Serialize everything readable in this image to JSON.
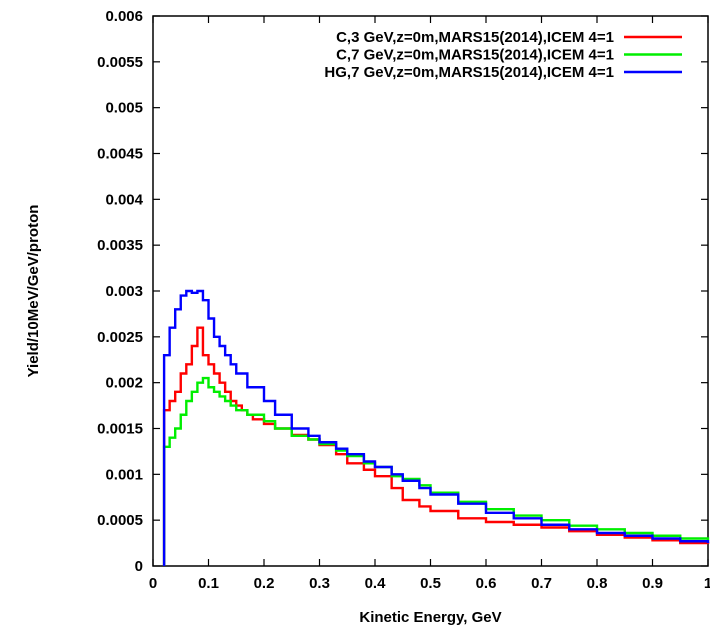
{
  "chart_data": {
    "type": "line",
    "xlabel": "Kinetic Energy, GeV",
    "ylabel": "Yield/10MeV/GeV/proton",
    "xlim": [
      0,
      1
    ],
    "ylim": [
      0,
      0.006
    ],
    "x_ticks": [
      "0",
      "0.1",
      "0.2",
      "0.3",
      "0.4",
      "0.5",
      "0.6",
      "0.7",
      "0.8",
      "0.9",
      "1"
    ],
    "y_ticks": [
      "0",
      "0.0005",
      "0.001",
      "0.0015",
      "0.002",
      "0.0025",
      "0.003",
      "0.0035",
      "0.004",
      "0.0045",
      "0.005",
      "0.0055",
      "0.006"
    ],
    "step": "histogram",
    "grid": false,
    "legend_position": "top-right",
    "series": [
      {
        "name": "C,3 GeV,z=0m,MARS15(2014),ICEM 4=1",
        "color": "#ff0000",
        "points": [
          [
            0.02,
            0.0017
          ],
          [
            0.03,
            0.0018
          ],
          [
            0.04,
            0.0019
          ],
          [
            0.05,
            0.0021
          ],
          [
            0.06,
            0.0022
          ],
          [
            0.07,
            0.0024
          ],
          [
            0.08,
            0.0026
          ],
          [
            0.09,
            0.0023
          ],
          [
            0.1,
            0.0022
          ],
          [
            0.11,
            0.0021
          ],
          [
            0.12,
            0.002
          ],
          [
            0.13,
            0.0019
          ],
          [
            0.14,
            0.0018
          ],
          [
            0.15,
            0.00175
          ],
          [
            0.16,
            0.0017
          ],
          [
            0.17,
            0.00165
          ],
          [
            0.18,
            0.0016
          ],
          [
            0.2,
            0.00155
          ],
          [
            0.22,
            0.0015
          ],
          [
            0.25,
            0.00143
          ],
          [
            0.28,
            0.00138
          ],
          [
            0.3,
            0.00132
          ],
          [
            0.33,
            0.00122
          ],
          [
            0.35,
            0.00112
          ],
          [
            0.38,
            0.00105
          ],
          [
            0.4,
            0.00098
          ],
          [
            0.43,
            0.00085
          ],
          [
            0.45,
            0.00072
          ],
          [
            0.48,
            0.00065
          ],
          [
            0.5,
            0.0006
          ],
          [
            0.55,
            0.00052
          ],
          [
            0.6,
            0.00048
          ],
          [
            0.65,
            0.00045
          ],
          [
            0.7,
            0.00042
          ],
          [
            0.75,
            0.00038
          ],
          [
            0.8,
            0.00034
          ],
          [
            0.85,
            0.00031
          ],
          [
            0.9,
            0.00028
          ],
          [
            0.95,
            0.00025
          ],
          [
            1.0,
            0.00024
          ]
        ]
      },
      {
        "name": "C,7 GeV,z=0m,MARS15(2014),ICEM 4=1",
        "color": "#00ee00",
        "points": [
          [
            0.02,
            0.0013
          ],
          [
            0.03,
            0.0014
          ],
          [
            0.04,
            0.0015
          ],
          [
            0.05,
            0.00165
          ],
          [
            0.06,
            0.0018
          ],
          [
            0.07,
            0.0019
          ],
          [
            0.08,
            0.002
          ],
          [
            0.09,
            0.00205
          ],
          [
            0.1,
            0.00195
          ],
          [
            0.11,
            0.0019
          ],
          [
            0.12,
            0.00185
          ],
          [
            0.13,
            0.0018
          ],
          [
            0.14,
            0.00175
          ],
          [
            0.15,
            0.0017
          ],
          [
            0.17,
            0.00165
          ],
          [
            0.2,
            0.00158
          ],
          [
            0.22,
            0.0015
          ],
          [
            0.25,
            0.00142
          ],
          [
            0.28,
            0.00138
          ],
          [
            0.3,
            0.00133
          ],
          [
            0.33,
            0.00126
          ],
          [
            0.35,
            0.0012
          ],
          [
            0.38,
            0.00112
          ],
          [
            0.4,
            0.00108
          ],
          [
            0.43,
            0.00098
          ],
          [
            0.45,
            0.00095
          ],
          [
            0.48,
            0.00088
          ],
          [
            0.5,
            0.0008
          ],
          [
            0.55,
            0.0007
          ],
          [
            0.6,
            0.00062
          ],
          [
            0.65,
            0.00055
          ],
          [
            0.7,
            0.0005
          ],
          [
            0.75,
            0.00044
          ],
          [
            0.8,
            0.0004
          ],
          [
            0.85,
            0.00036
          ],
          [
            0.9,
            0.00033
          ],
          [
            0.95,
            0.0003
          ],
          [
            1.0,
            0.00028
          ]
        ]
      },
      {
        "name": "HG,7 GeV,z=0m,MARS15(2014),ICEM 4=1",
        "color": "#0000ff",
        "points": [
          [
            0.02,
            0.0023
          ],
          [
            0.03,
            0.0026
          ],
          [
            0.04,
            0.0028
          ],
          [
            0.05,
            0.00295
          ],
          [
            0.06,
            0.003
          ],
          [
            0.07,
            0.00298
          ],
          [
            0.08,
            0.003
          ],
          [
            0.09,
            0.0029
          ],
          [
            0.1,
            0.0027
          ],
          [
            0.11,
            0.0025
          ],
          [
            0.12,
            0.0024
          ],
          [
            0.13,
            0.0023
          ],
          [
            0.14,
            0.0022
          ],
          [
            0.15,
            0.0021
          ],
          [
            0.17,
            0.00195
          ],
          [
            0.2,
            0.0018
          ],
          [
            0.22,
            0.00165
          ],
          [
            0.25,
            0.0015
          ],
          [
            0.28,
            0.00142
          ],
          [
            0.3,
            0.00135
          ],
          [
            0.33,
            0.00128
          ],
          [
            0.35,
            0.00122
          ],
          [
            0.38,
            0.00114
          ],
          [
            0.4,
            0.00108
          ],
          [
            0.43,
            0.001
          ],
          [
            0.45,
            0.00093
          ],
          [
            0.48,
            0.00085
          ],
          [
            0.5,
            0.00078
          ],
          [
            0.55,
            0.00068
          ],
          [
            0.6,
            0.00058
          ],
          [
            0.65,
            0.00052
          ],
          [
            0.7,
            0.00045
          ],
          [
            0.75,
            0.0004
          ],
          [
            0.8,
            0.00036
          ],
          [
            0.85,
            0.00033
          ],
          [
            0.9,
            0.0003
          ],
          [
            0.95,
            0.00027
          ],
          [
            1.0,
            0.00025
          ]
        ]
      }
    ]
  }
}
